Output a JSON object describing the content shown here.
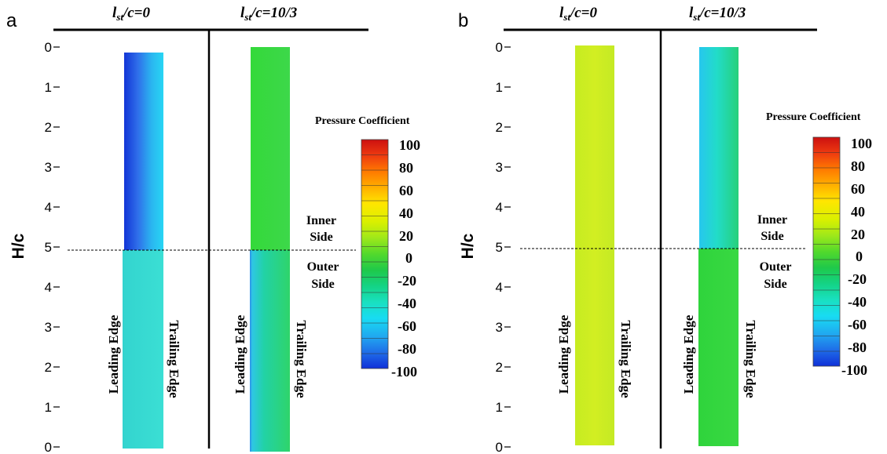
{
  "panels": [
    {
      "label": "a",
      "col1_title_main": "l",
      "col1_title_sub": "st",
      "col1_title_rest": "/c=0",
      "col2_title_main": "l",
      "col2_title_sub": "st",
      "col2_title_rest": "/c=10/3",
      "yaxis_label": "H/c",
      "yticks": [
        "0",
        "1",
        "2",
        "3",
        "4",
        "5",
        "4",
        "3",
        "2",
        "1",
        "0"
      ],
      "leading_edge_label": "Leading Edge",
      "trailing_edge_label": "Trailing Edge",
      "inner_label_line1": "Inner",
      "inner_label_line2": "Side",
      "outer_label_line1": "Outer",
      "outer_label_line2": "Side",
      "colorbar_title": "Pressure Coefficient",
      "colorbar_ticks": [
        "100",
        "80",
        "60",
        "40",
        "20",
        "0",
        "-20",
        "-40",
        "-60",
        "-80",
        "-100"
      ]
    },
    {
      "label": "b",
      "col1_title_main": "l",
      "col1_title_sub": "st",
      "col1_title_rest": "/c=0",
      "col2_title_main": "l",
      "col2_title_sub": "st",
      "col2_title_rest": "/c=10/3",
      "yaxis_label": "H/c",
      "yticks": [
        "0",
        "1",
        "2",
        "3",
        "4",
        "5",
        "4",
        "3",
        "2",
        "1",
        "0"
      ],
      "leading_edge_label": "Leading Edge",
      "trailing_edge_label": "Trailing Edge",
      "inner_label_line1": "Inner",
      "inner_label_line2": "Side",
      "outer_label_line1": "Outer",
      "outer_label_line2": "Side",
      "colorbar_title": "Pressure Coefficient",
      "colorbar_ticks": [
        "100",
        "80",
        "60",
        "40",
        "20",
        "0",
        "-20",
        "-40",
        "-60",
        "-80",
        "-100"
      ]
    }
  ],
  "colors": {
    "colorbar_stops": [
      "#cc1010",
      "#ee3b10",
      "#ff7a00",
      "#ffb000",
      "#ffe600",
      "#d9f000",
      "#9ee81a",
      "#52d92c",
      "#1fc94a",
      "#14d385",
      "#19e0c0",
      "#18dcf2",
      "#20a8f0",
      "#1f6de8",
      "#1030d8"
    ]
  }
}
